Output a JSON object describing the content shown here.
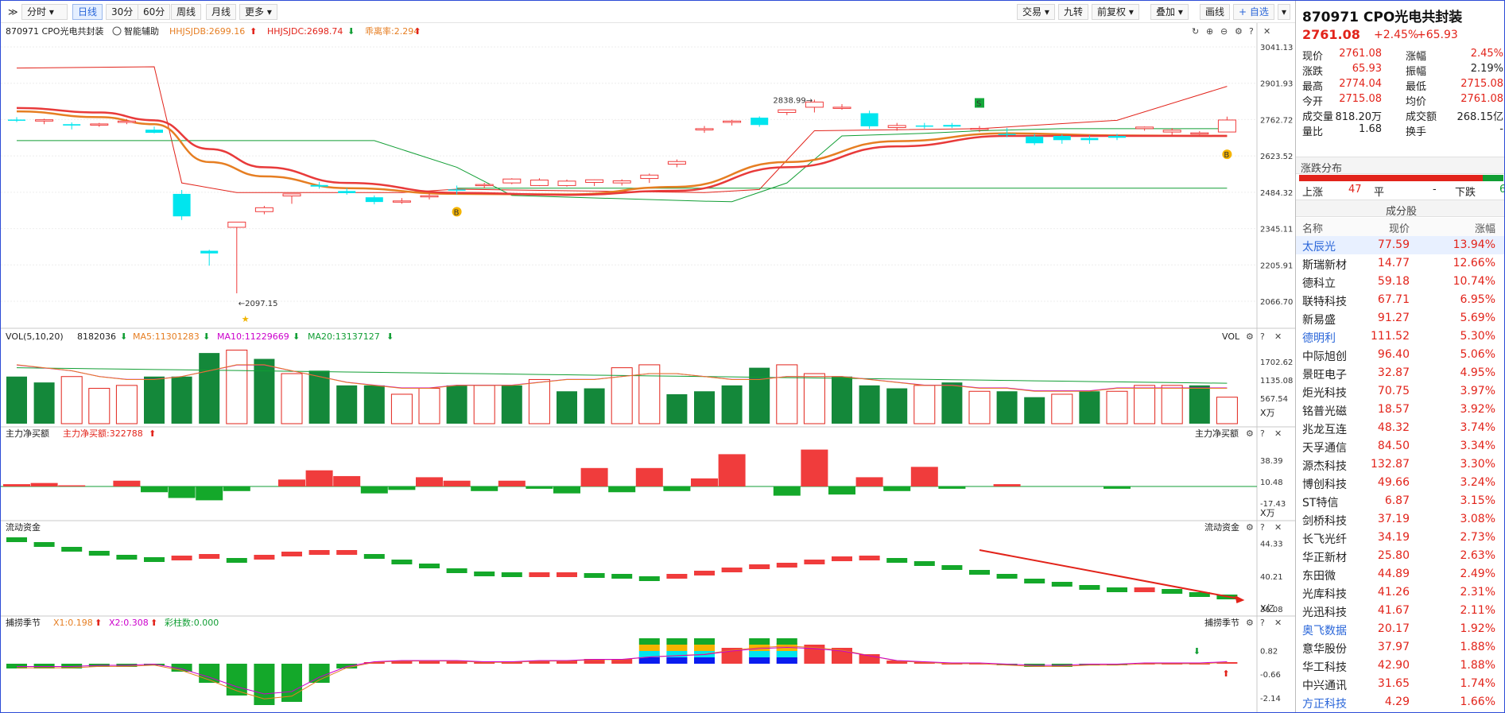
{
  "toolbar": {
    "expand_label": "≫",
    "items": [
      "分时",
      "日线",
      "30分",
      "60分",
      "周线",
      "月线",
      "更多"
    ],
    "right_items": [
      "交易",
      "九转",
      "前复权",
      "叠加",
      "画线",
      "+ 自选"
    ]
  },
  "chart": {
    "stock_name": "870971 CPO光电共封装",
    "assist_label": "智能辅助",
    "indicators": [
      {
        "text": "HHJSJDB:2699.16",
        "color": "#e67e22"
      },
      {
        "text": "HHJSJDC:2698.74",
        "color": "#e2231a"
      },
      {
        "text": "乖离率:2.294",
        "color": "#e67e22"
      }
    ],
    "price_axis": [
      "3041.13",
      "2901.93",
      "2762.72",
      "2623.52",
      "2484.32",
      "2345.11",
      "2205.91",
      "2066.70"
    ],
    "high_label": "2838.99",
    "low_label": "2097.15",
    "markers": {
      "buy": "B",
      "sell": "S"
    }
  },
  "vol_panel": {
    "title": "VOL(5,10,20)",
    "value": "8182036",
    "ma5": "MA5:11301283",
    "ma10": "MA10:11229669",
    "ma20": "MA20:13137127",
    "right_label": "VOL",
    "axis": [
      "1702.62",
      "1135.08",
      "567.54"
    ],
    "unit": "X万"
  },
  "netbuy_panel": {
    "title": "主力净买额",
    "value": "主力净买额:322788",
    "right_label": "主力净买额",
    "axis": [
      "38.39",
      "10.48",
      "-17.43"
    ],
    "unit": "X万"
  },
  "flow_panel": {
    "title": "流动资金",
    "right_label": "流动资金",
    "axis": [
      "44.33",
      "40.21",
      "36.08"
    ],
    "unit": "X亿"
  },
  "season_panel": {
    "title": "捕捞季节",
    "x1": "X1:0.198",
    "x2": "X2:0.308",
    "bar": "彩柱数:0.000",
    "right_label": "捕捞季节",
    "axis": [
      "0.82",
      "-0.66",
      "-2.14"
    ]
  },
  "quote": {
    "title": "870971 CPO光电共封装",
    "price": "2761.08",
    "pct": "+2.45%",
    "change": "+65.93",
    "rows": [
      [
        "现价",
        "2761.08",
        "涨幅",
        "2.45%"
      ],
      [
        "涨跌",
        "65.93",
        "振幅",
        "2.19%"
      ],
      [
        "最高",
        "2774.04",
        "最低",
        "2715.08"
      ],
      [
        "今开",
        "2715.08",
        "均价",
        "2761.08"
      ],
      [
        "成交量",
        "818.20万",
        "成交额",
        "268.15亿"
      ],
      [
        "量比",
        "1.68",
        "换手",
        "-"
      ]
    ],
    "dist_title": "涨跌分布",
    "up_label": "上涨",
    "up_count": "47",
    "flat_label": "平",
    "flat_count": "-",
    "down_label": "下跌",
    "down_count": "6",
    "components_title": "成分股",
    "col_headers": [
      "名称",
      "现价",
      "涨幅"
    ],
    "components": [
      {
        "name": "太辰光",
        "price": "77.59",
        "pct": "13.94%",
        "blue": true
      },
      {
        "name": "斯瑞新材",
        "price": "14.77",
        "pct": "12.66%",
        "blue": false
      },
      {
        "name": "德科立",
        "price": "59.18",
        "pct": "10.74%",
        "blue": false
      },
      {
        "name": "联特科技",
        "price": "67.71",
        "pct": "6.95%",
        "blue": false
      },
      {
        "name": "新易盛",
        "price": "91.27",
        "pct": "5.69%",
        "blue": false
      },
      {
        "name": "德明利",
        "price": "111.52",
        "pct": "5.30%",
        "blue": true
      },
      {
        "name": "中际旭创",
        "price": "96.40",
        "pct": "5.06%",
        "blue": false
      },
      {
        "name": "景旺电子",
        "price": "32.87",
        "pct": "4.95%",
        "blue": false
      },
      {
        "name": "炬光科技",
        "price": "70.75",
        "pct": "3.97%",
        "blue": false
      },
      {
        "name": "铭普光磁",
        "price": "18.57",
        "pct": "3.92%",
        "blue": false
      },
      {
        "name": "兆龙互连",
        "price": "48.32",
        "pct": "3.74%",
        "blue": false
      },
      {
        "name": "天孚通信",
        "price": "84.50",
        "pct": "3.34%",
        "blue": false
      },
      {
        "name": "源杰科技",
        "price": "132.87",
        "pct": "3.30%",
        "blue": false
      },
      {
        "name": "博创科技",
        "price": "49.66",
        "pct": "3.24%",
        "blue": false
      },
      {
        "name": "ST特信",
        "price": "6.87",
        "pct": "3.15%",
        "blue": false
      },
      {
        "name": "剑桥科技",
        "price": "37.19",
        "pct": "3.08%",
        "blue": false
      },
      {
        "name": "长飞光纤",
        "price": "34.19",
        "pct": "2.73%",
        "blue": false
      },
      {
        "name": "华正新材",
        "price": "25.80",
        "pct": "2.63%",
        "blue": false
      },
      {
        "name": "东田微",
        "price": "44.89",
        "pct": "2.49%",
        "blue": false
      },
      {
        "name": "光库科技",
        "price": "41.26",
        "pct": "2.31%",
        "blue": false
      },
      {
        "name": "光迅科技",
        "price": "41.67",
        "pct": "2.11%",
        "blue": false
      },
      {
        "name": "奥飞数据",
        "price": "20.17",
        "pct": "1.92%",
        "blue": true
      },
      {
        "name": "意华股份",
        "price": "37.97",
        "pct": "1.88%",
        "blue": false
      },
      {
        "name": "华工科技",
        "price": "42.90",
        "pct": "1.88%",
        "blue": false
      },
      {
        "name": "中兴通讯",
        "price": "31.65",
        "pct": "1.74%",
        "blue": false
      },
      {
        "name": "方正科技",
        "price": "4.29",
        "pct": "1.66%",
        "blue": true
      }
    ]
  },
  "colors": {
    "up": "#f03c3c",
    "down": "#00e5ee",
    "vol_down": "#14883a",
    "ma_red": "#e83a3a",
    "ma_orange": "#e67e22"
  },
  "candles": [
    [
      2762.72,
      2772,
      2753,
      2760,
      2755,
      2765,
      2590,
      2620
    ],
    [
      2757,
      2766,
      2745,
      2762,
      2747,
      2765,
      2585,
      2615
    ],
    [
      2745,
      2752,
      2725,
      2740,
      2730,
      2760,
      2580,
      2610
    ],
    [
      2744,
      2750,
      2735,
      2746,
      2740,
      2755,
      2575,
      2605
    ],
    [
      2752,
      2765,
      2745,
      2757,
      2750,
      2760,
      2570,
      2600
    ],
    [
      2724,
      2736,
      2710,
      2712,
      2720,
      2750,
      2560,
      2600
    ],
    [
      2478,
      2493,
      2378,
      2392,
      2690,
      2700,
      2550,
      2595
    ],
    [
      2260,
      2264,
      2203,
      2250,
      2600,
      2610,
      2540,
      2595
    ],
    [
      2350,
      2362,
      2097.15,
      2370,
      2500,
      2500,
      2530,
      2590
    ],
    [
      2410,
      2432,
      2400,
      2425,
      2480,
      2480,
      2520,
      2585
    ],
    [
      2470,
      2478,
      2440,
      2478,
      2480,
      2490,
      2505,
      2580
    ],
    [
      2512,
      2524,
      2498,
      2506,
      2485,
      2495,
      2490,
      2575
    ],
    [
      2489,
      2500,
      2475,
      2481,
      2485,
      2495,
      2480,
      2565
    ],
    [
      2465,
      2472,
      2438,
      2447,
      2485,
      2500,
      2472,
      2555
    ],
    [
      2448,
      2462,
      2440,
      2451,
      2470,
      2500,
      2466,
      2540
    ],
    [
      2471,
      2480,
      2457,
      2471,
      2480,
      2500,
      2462,
      2530
    ],
    [
      2495,
      2510,
      2476,
      2492,
      2480,
      2495,
      2458,
      2520
    ],
    [
      2510,
      2520,
      2500,
      2514,
      2485,
      2495,
      2455,
      2510
    ],
    [
      2520,
      2538,
      2515,
      2535,
      2485,
      2480,
      2452,
      2500
    ],
    [
      2510,
      2538,
      2508,
      2531,
      2480,
      2470,
      2450,
      2490
    ],
    [
      2510,
      2533,
      2506,
      2527,
      2470,
      2465,
      2450,
      2485
    ],
    [
      2522,
      2533,
      2508,
      2532,
      2470,
      2465,
      2450,
      2480
    ],
    [
      2520,
      2534,
      2510,
      2528,
      2470,
      2465,
      2450,
      2478
    ],
    [
      2537,
      2556,
      2520,
      2550,
      2470,
      2470,
      2452,
      2475
    ],
    [
      2592,
      2610,
      2580,
      2602,
      2470,
      2470,
      2455,
      2472
    ],
    [
      2723,
      2738,
      2712,
      2728,
      2465,
      2465,
      2460,
      2472
    ],
    [
      2752,
      2762,
      2740,
      2757,
      2480,
      2475,
      2470,
      2478
    ],
    [
      2770,
      2775,
      2735,
      2742,
      2490,
      2485,
      2480,
      2485
    ],
    [
      2790,
      2800,
      2780,
      2800,
      2500,
      2500,
      2492,
      2495
    ],
    [
      2810,
      2838.99,
      2790,
      2830,
      2520,
      2520,
      2505,
      2508
    ],
    [
      2810,
      2822,
      2800,
      2810,
      2680,
      2550,
      2518,
      2522
    ],
    [
      2787,
      2797,
      2727,
      2737,
      2700,
      2575,
      2530,
      2538
    ],
    [
      2732,
      2750,
      2720,
      2740,
      2700,
      2620,
      2545,
      2555
    ],
    [
      2740,
      2750,
      2728,
      2738,
      2700,
      2660,
      2560,
      2575
    ],
    [
      2742,
      2750,
      2730,
      2736,
      2700,
      2680,
      2575,
      2595
    ],
    [
      2725,
      2738,
      2715,
      2729,
      2700,
      2700,
      2590,
      2612
    ],
    [
      2708,
      2731,
      2695,
      2706,
      2700,
      2705,
      2602,
      2628
    ],
    [
      2698,
      2708,
      2665,
      2672,
      2700,
      2705,
      2612,
      2640
    ],
    [
      2700,
      2706,
      2670,
      2684,
      2700,
      2705,
      2620,
      2650
    ],
    [
      2692,
      2702,
      2670,
      2684,
      2700,
      2705,
      2628,
      2660
    ],
    [
      2700,
      2708,
      2684,
      2693,
      2700,
      2705,
      2636,
      2670
    ],
    [
      2728,
      2736,
      2720,
      2734,
      2700,
      2710,
      2645,
      2680
    ],
    [
      2715,
      2730,
      2700,
      2722,
      2700,
      2710,
      2652,
      2688
    ],
    [
      2708,
      2718,
      2705,
      2712,
      2700,
      2710,
      2660,
      2696
    ],
    [
      2715.08,
      2774.04,
      2715.08,
      2761.08,
      2700,
      2710,
      2665,
      2700
    ]
  ],
  "volumes": [
    1.6,
    1.4,
    1.6,
    1.2,
    1.3,
    1.6,
    1.6,
    2.4,
    2.5,
    2.2,
    1.7,
    1.8,
    1.3,
    1.3,
    1.0,
    1.2,
    1.3,
    1.3,
    1.3,
    1.5,
    1.1,
    1.2,
    1.9,
    2.0,
    1.0,
    1.1,
    1.3,
    1.9,
    2.0,
    1.7,
    1.6,
    1.3,
    1.2,
    1.3,
    1.4,
    1.1,
    1.1,
    0.9,
    1.0,
    1.1,
    1.1,
    1.3,
    1.3,
    1.3,
    0.9
  ],
  "vol_up_flags": [
    0,
    0,
    1,
    1,
    1,
    0,
    0,
    0,
    1,
    0,
    1,
    0,
    0,
    0,
    1,
    1,
    0,
    1,
    0,
    1,
    0,
    0,
    1,
    1,
    0,
    0,
    0,
    0,
    1,
    1,
    0,
    0,
    0,
    1,
    0,
    1,
    0,
    0,
    1,
    0,
    1,
    1,
    1,
    0,
    1
  ],
  "netbuy": [
    2,
    3,
    1,
    0,
    5,
    -5,
    -10,
    -12,
    -4,
    0,
    6,
    14,
    9,
    -6,
    -3,
    8,
    5,
    -4,
    5,
    -2,
    -6,
    16,
    -5,
    16,
    -4,
    7,
    28,
    0,
    -8,
    32,
    -7,
    8,
    -4,
    17,
    -2,
    0,
    2,
    0,
    0,
    0,
    -2,
    0,
    0,
    0,
    0
  ],
  "flow": [
    44.8,
    44.2,
    43.6,
    43.1,
    42.6,
    42.3,
    42.5,
    42.7,
    42.2,
    42.6,
    43.0,
    43.2,
    43.2,
    42.7,
    42.0,
    41.5,
    40.9,
    40.5,
    40.4,
    40.4,
    40.4,
    40.3,
    40.2,
    39.9,
    40.2,
    40.6,
    41.0,
    41.4,
    41.6,
    42.0,
    42.4,
    42.5,
    42.2,
    41.8,
    41.3,
    40.7,
    40.2,
    39.6,
    39.2,
    38.8,
    38.5,
    38.5,
    38.3,
    37.9,
    37.6
  ],
  "season": [
    -0.3,
    -0.3,
    -0.3,
    -0.2,
    -0.2,
    -0.1,
    -0.5,
    -1.2,
    -2.0,
    -2.6,
    -2.4,
    -1.2,
    -0.3,
    0.1,
    0.2,
    0.2,
    0.2,
    0.1,
    0.1,
    0.2,
    0.2,
    0.3,
    0.3,
    0.5,
    0.6,
    0.7,
    1.0,
    1.2,
    1.3,
    1.2,
    1.0,
    0.6,
    0.2,
    0.1,
    0.0,
    0.0,
    -0.1,
    -0.2,
    -0.2,
    -0.1,
    -0.1,
    0.0,
    0.0,
    0.0,
    0.1
  ],
  "season_bars_colored": [
    23,
    24,
    25,
    26,
    27,
    28
  ]
}
